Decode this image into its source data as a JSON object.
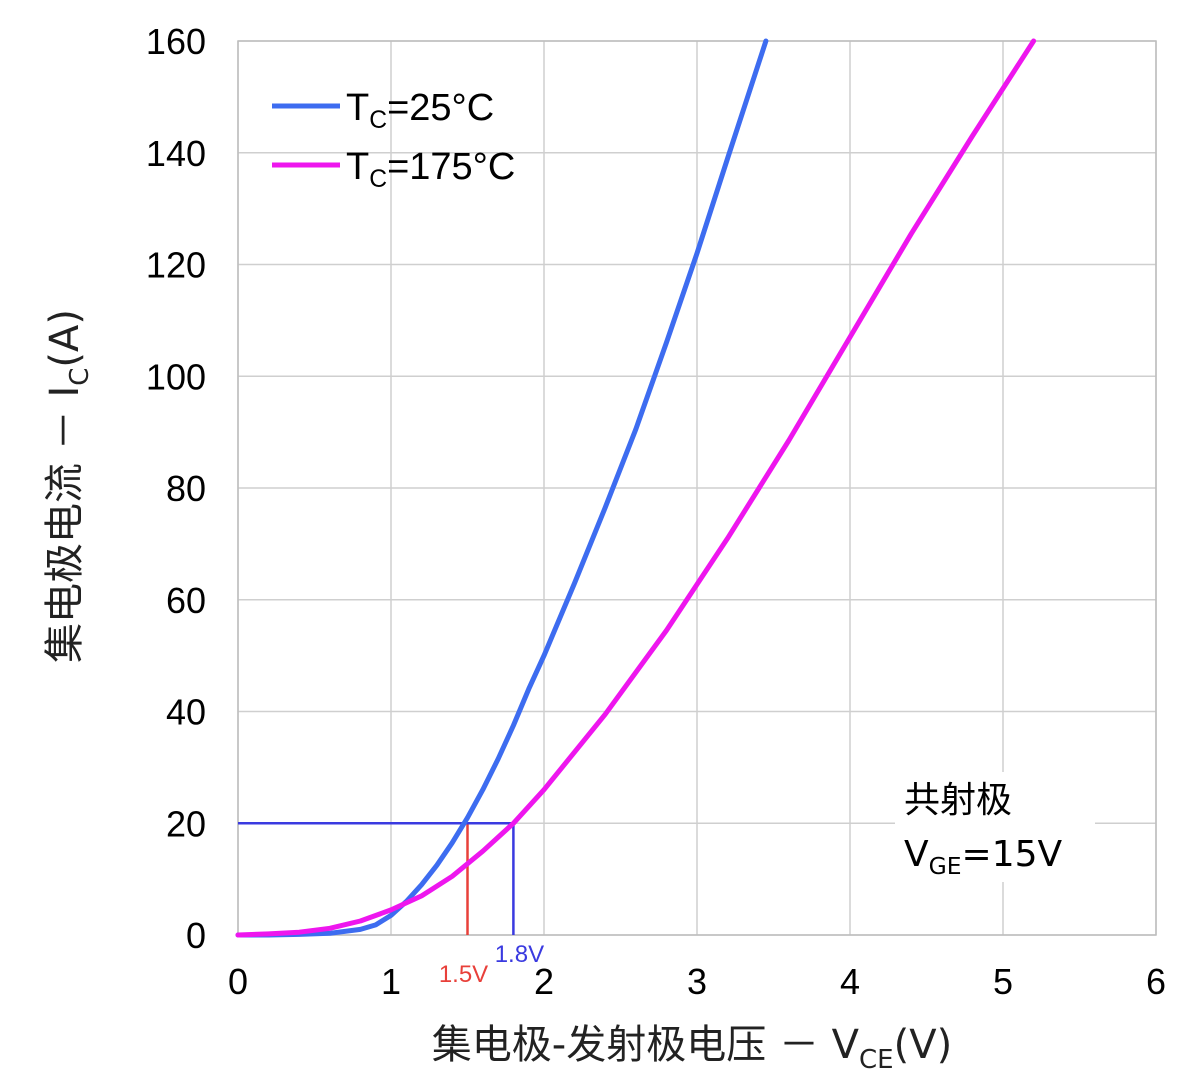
{
  "chart_data": {
    "type": "line",
    "xlabel": "集电极-发射极电压 － V",
    "xlabel_sub": "CE",
    "xlabel_unit": "(V)",
    "ylabel": "集电极电流 － I",
    "ylabel_sub": "C",
    "ylabel_unit": "(A)",
    "xlim": [
      0,
      6
    ],
    "ylim": [
      0,
      160
    ],
    "x_ticks": [
      "0",
      "1",
      "2",
      "3",
      "4",
      "5",
      "6"
    ],
    "y_ticks": [
      "0",
      "20",
      "40",
      "60",
      "80",
      "100",
      "120",
      "140",
      "160"
    ],
    "grid": true,
    "legend_position": "top-left",
    "series": [
      {
        "name": "T",
        "name_sub": "C",
        "name_suffix": "=25°C",
        "color": "#3d6cf0",
        "x": [
          0,
          0.2,
          0.4,
          0.6,
          0.8,
          0.9,
          1.0,
          1.1,
          1.2,
          1.3,
          1.4,
          1.5,
          1.6,
          1.7,
          1.8,
          1.9,
          2.0,
          2.2,
          2.4,
          2.6,
          2.8,
          3.0,
          3.2,
          3.45
        ],
        "y": [
          0,
          0,
          0.1,
          0.3,
          1,
          1.8,
          3.5,
          6,
          9,
          12.5,
          16.5,
          21,
          26,
          31.5,
          37.5,
          44,
          50,
          63,
          76.5,
          90.5,
          106,
          122,
          139,
          160
        ]
      },
      {
        "name": "T",
        "name_sub": "C",
        "name_suffix": "=175°C",
        "color": "#ee16ee",
        "x": [
          0,
          0.2,
          0.4,
          0.6,
          0.8,
          1.0,
          1.2,
          1.4,
          1.6,
          1.8,
          2.0,
          2.4,
          2.8,
          3.2,
          3.6,
          4.0,
          4.4,
          4.8,
          5.2
        ],
        "y": [
          0,
          0.2,
          0.5,
          1.2,
          2.5,
          4.5,
          7,
          10.5,
          15,
          20,
          26,
          39.5,
          54.5,
          71,
          88.5,
          107,
          125.5,
          143,
          160
        ]
      }
    ],
    "annotations": {
      "note_line1": "共射极",
      "note_line2_prefix": "V",
      "note_line2_sub": "GE",
      "note_line2_suffix": "=15V",
      "markers": [
        {
          "label": "1.5V",
          "x": 1.5,
          "y": 20,
          "color": "#e8403a"
        },
        {
          "label": "1.8V",
          "x": 1.8,
          "y": 20,
          "color": "#3a3ae0"
        }
      ]
    }
  }
}
